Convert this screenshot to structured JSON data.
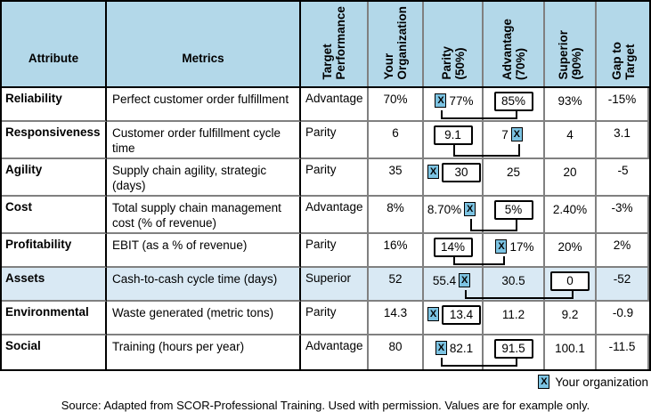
{
  "table": {
    "headers": {
      "attribute": "Attribute",
      "metrics": "Metrics",
      "target": "Target\nPerformance",
      "your_org": "Your\nOrganization",
      "parity": "Parity\n(50%)",
      "advantage": "Advantage\n(70%)",
      "superior": "Superior\n(90%)",
      "gap": "Gap to\nTarget"
    },
    "rows": [
      {
        "attribute": "Reliability",
        "metric": "Perfect customer order fulfillment",
        "target": "Advantage",
        "your_org": "70%",
        "parity": {
          "value": "77%",
          "marker": "left",
          "boxed": false
        },
        "advantage": {
          "value": "85%",
          "marker": null,
          "boxed": true
        },
        "superior": {
          "value": "93%",
          "marker": null,
          "boxed": false
        },
        "gap": "-15%",
        "connector": true,
        "shaded": false
      },
      {
        "attribute": "Responsiveness",
        "metric": "Customer order fulfillment cycle time",
        "target": "Parity",
        "your_org": "6",
        "parity": {
          "value": "9.1",
          "marker": null,
          "boxed": true
        },
        "advantage": {
          "value": "7",
          "marker": "right",
          "boxed": false
        },
        "superior": {
          "value": "4",
          "marker": null,
          "boxed": false
        },
        "gap": "3.1",
        "connector": true,
        "shaded": false
      },
      {
        "attribute": "Agility",
        "metric": "Supply chain agility, strategic (days)",
        "target": "Parity",
        "your_org": "35",
        "parity": {
          "value": "30",
          "marker": "left",
          "boxed": true
        },
        "advantage": {
          "value": "25",
          "marker": null,
          "boxed": false
        },
        "superior": {
          "value": "20",
          "marker": null,
          "boxed": false
        },
        "gap": "-5",
        "connector": false,
        "shaded": false
      },
      {
        "attribute": "Cost",
        "metric": "Total supply chain management cost (% of revenue)",
        "target": "Advantage",
        "your_org": "8%",
        "parity": {
          "value": "8.70%",
          "marker": "right",
          "boxed": false
        },
        "advantage": {
          "value": "5%",
          "marker": null,
          "boxed": true
        },
        "superior": {
          "value": "2.40%",
          "marker": null,
          "boxed": false
        },
        "gap": "-3%",
        "connector": true,
        "shaded": false
      },
      {
        "attribute": "Profitability",
        "metric": "EBIT (as a % of revenue)",
        "target": "Parity",
        "your_org": "16%",
        "parity": {
          "value": "14%",
          "marker": null,
          "boxed": true
        },
        "advantage": {
          "value": "17%",
          "marker": "left",
          "boxed": false
        },
        "superior": {
          "value": "20%",
          "marker": null,
          "boxed": false
        },
        "gap": "2%",
        "connector": true,
        "shaded": false
      },
      {
        "attribute": "Assets",
        "metric": "Cash-to-cash cycle time (days)",
        "target": "Superior",
        "your_org": "52",
        "parity": {
          "value": "55.4",
          "marker": "right",
          "boxed": false
        },
        "advantage": {
          "value": "30.5",
          "marker": null,
          "boxed": false
        },
        "superior": {
          "value": "0",
          "marker": null,
          "boxed": true
        },
        "gap": "-52",
        "connector": true,
        "shaded": true
      },
      {
        "attribute": "Environmental",
        "metric": "Waste generated (metric tons)",
        "target": "Parity",
        "your_org": "14.3",
        "parity": {
          "value": "13.4",
          "marker": "left",
          "boxed": true
        },
        "advantage": {
          "value": "11.2",
          "marker": null,
          "boxed": false
        },
        "superior": {
          "value": "9.2",
          "marker": null,
          "boxed": false
        },
        "gap": "-0.9",
        "connector": false,
        "shaded": false
      },
      {
        "attribute": "Social",
        "metric": "Training (hours per year)",
        "target": "Advantage",
        "your_org": "80",
        "parity": {
          "value": "82.1",
          "marker": "left",
          "boxed": false
        },
        "advantage": {
          "value": "91.5",
          "marker": null,
          "boxed": true
        },
        "superior": {
          "value": "100.1",
          "marker": null,
          "boxed": false
        },
        "gap": "-11.5",
        "connector": true,
        "shaded": false
      }
    ]
  },
  "legend": {
    "marker": "X",
    "label": "Your organization"
  },
  "source_note": "Source: Adapted from SCOR-Professional Training. Used with permission. Values are for example only.",
  "colors": {
    "header_bg": "#b3d8e9",
    "shaded_row_bg": "#d9e9f4",
    "marker_bg": "#7cc3e2",
    "grid_gray": "#808080",
    "border_black": "#000000"
  }
}
